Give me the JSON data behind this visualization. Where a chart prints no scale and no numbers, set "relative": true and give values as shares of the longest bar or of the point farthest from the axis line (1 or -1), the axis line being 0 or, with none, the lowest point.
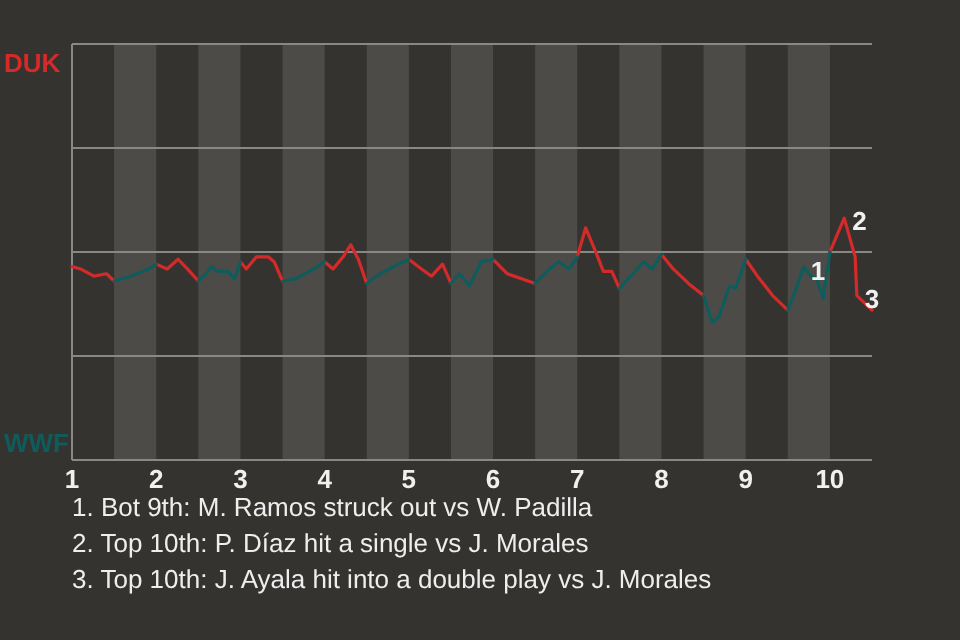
{
  "chart_data": {
    "type": "line",
    "relative": true,
    "xlim": [
      1,
      10.5
    ],
    "xticks": [
      1,
      2,
      3,
      4,
      5,
      6,
      7,
      8,
      9,
      10
    ],
    "marker": "none",
    "line_style": "solid",
    "ref_lines": [
      {
        "axis": "y",
        "value": 0.43,
        "color": "#8a8886"
      },
      {
        "axis": "y",
        "value": 0.86,
        "color": "#8a8886"
      },
      {
        "axis": "y",
        "value": 1.29,
        "color": "#8a8886"
      },
      {
        "axis": "y",
        "value": 1.72,
        "color": "#8a8886"
      }
    ],
    "bands": [
      {
        "axis": "x",
        "from": 1.5,
        "to": 2,
        "color": "#4d4b48"
      },
      {
        "axis": "x",
        "from": 2.5,
        "to": 3,
        "color": "#4d4b48"
      },
      {
        "axis": "x",
        "from": 3.5,
        "to": 4,
        "color": "#4d4b48"
      },
      {
        "axis": "x",
        "from": 4.5,
        "to": 5,
        "color": "#4d4b48"
      },
      {
        "axis": "x",
        "from": 5.5,
        "to": 6,
        "color": "#4d4b48"
      },
      {
        "axis": "x",
        "from": 6.5,
        "to": 7,
        "color": "#4d4b48"
      },
      {
        "axis": "x",
        "from": 7.5,
        "to": 8,
        "color": "#4d4b48"
      },
      {
        "axis": "x",
        "from": 8.5,
        "to": 9,
        "color": "#4d4b48"
      },
      {
        "axis": "x",
        "from": 9.5,
        "to": 10,
        "color": "#4d4b48"
      }
    ],
    "series": [
      {
        "name": "DUK",
        "color": "#d42a2a",
        "x": [
          1,
          1.1,
          1.26,
          1.41,
          1.5,
          1.75,
          2,
          2.13,
          2.26,
          2.37,
          2.5,
          2.75,
          3,
          3.07,
          3.19,
          3.33,
          3.4,
          3.5,
          3.75,
          4,
          4.1,
          4.22,
          4.31,
          4.4,
          4.5,
          4.75,
          5,
          5.15,
          5.27,
          5.4,
          5.5,
          5.75,
          6,
          6.17,
          6.5,
          6.75,
          7,
          7.1,
          7.22,
          7.31,
          7.41,
          7.5,
          7.75,
          8,
          8.14,
          8.32,
          8.5,
          8.75,
          9,
          9.14,
          9.32,
          9.5,
          9.75,
          10,
          10.17,
          10.3,
          10.32,
          10.5
        ],
        "values": [
          0.8,
          0.79,
          0.76,
          0.77,
          0.74,
          null,
          0.81,
          0.79,
          0.83,
          0.79,
          0.74,
          null,
          0.82,
          0.79,
          0.84,
          0.84,
          0.82,
          0.74,
          null,
          0.82,
          0.79,
          0.84,
          0.89,
          0.83,
          0.73,
          null,
          0.83,
          0.79,
          0.76,
          0.81,
          0.73,
          null,
          0.83,
          0.77,
          0.73,
          null,
          0.84,
          0.96,
          0.86,
          0.78,
          0.78,
          0.71,
          null,
          0.85,
          0.79,
          0.73,
          0.68,
          null,
          0.83,
          0.76,
          0.68,
          0.62,
          null,
          0.86,
          1,
          0.84,
          0.68,
          0.62
        ]
      },
      {
        "name": "WWF",
        "color": "#0f5c5c",
        "x": [
          1.5,
          1.7,
          1.91,
          2,
          2.25,
          2.5,
          2.59,
          2.66,
          2.73,
          2.85,
          2.93,
          3,
          3.25,
          3.5,
          3.66,
          3.87,
          4,
          4.25,
          4.5,
          4.66,
          4.82,
          5,
          5.25,
          5.5,
          5.6,
          5.72,
          5.86,
          6,
          6.25,
          6.5,
          6.64,
          6.78,
          6.9,
          7,
          7.25,
          7.5,
          7.66,
          7.79,
          7.89,
          8,
          8.25,
          8.5,
          8.6,
          8.68,
          8.81,
          8.88,
          9,
          9.25,
          9.5,
          9.58,
          9.69,
          9.77,
          9.84,
          9.92,
          10
        ],
        "values": [
          0.74,
          0.76,
          0.79,
          0.81,
          null,
          0.74,
          0.77,
          0.8,
          0.78,
          0.78,
          0.75,
          0.82,
          null,
          0.74,
          0.75,
          0.79,
          0.82,
          null,
          0.73,
          0.77,
          0.8,
          0.83,
          null,
          0.73,
          0.77,
          0.72,
          0.82,
          0.83,
          null,
          0.73,
          0.78,
          0.82,
          0.79,
          0.84,
          null,
          0.71,
          0.77,
          0.82,
          0.79,
          0.85,
          null,
          0.68,
          0.57,
          0.59,
          0.72,
          0.71,
          0.83,
          null,
          0.62,
          0.69,
          0.8,
          0.76,
          0.75,
          0.67,
          0.86
        ]
      }
    ],
    "annotations": [
      {
        "text": "1",
        "x": 10,
        "y": 0.86
      },
      {
        "text": "2",
        "x": 10.17,
        "y": 1
      },
      {
        "text": "3",
        "x": 10.32,
        "y": 0.68
      },
      "1. Bot 9th: M. Ramos struck out vs W. Padilla",
      "2. Top 10th: P. Díaz hit a single vs J. Morales",
      "3. Top 10th: J. Ayala hit into a double play vs J. Morales"
    ]
  }
}
